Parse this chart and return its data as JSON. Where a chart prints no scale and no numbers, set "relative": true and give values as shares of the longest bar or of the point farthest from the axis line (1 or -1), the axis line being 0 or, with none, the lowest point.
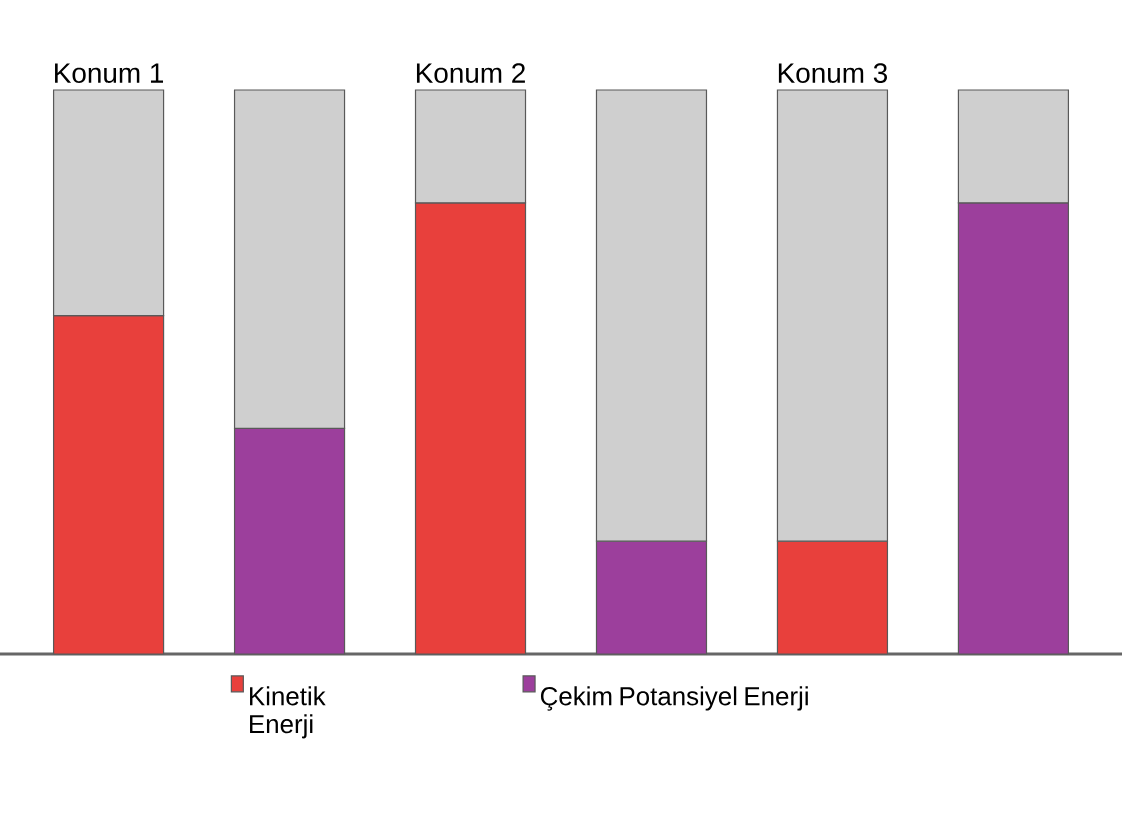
{
  "chart_data": {
    "type": "bar",
    "relative": true,
    "legend": "bottom",
    "stacked": true,
    "categories": [
      "Konum 1",
      null,
      "Konum 2",
      null,
      "Konum 3",
      null
    ],
    "series": [
      {
        "name": "Kinetik Enerji",
        "color": "#e8403c",
        "values": [
          0.6,
          null,
          0.8,
          null,
          0.2,
          null
        ]
      },
      {
        "name": "Çekim Potansiyel Enerji",
        "color": "#9c3f9c",
        "values": [
          null,
          0.4,
          null,
          0.2,
          null,
          0.8
        ]
      },
      {
        "color": "#cfcfcf",
        "values": [
          0.4,
          0.6,
          0.2,
          0.8,
          0.8,
          0.2
        ]
      }
    ]
  }
}
